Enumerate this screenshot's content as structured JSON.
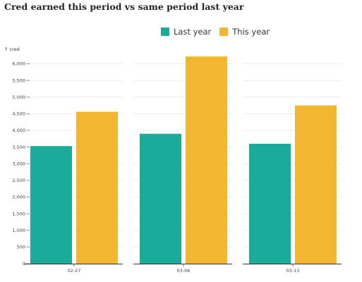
{
  "chart_data": {
    "type": "bar",
    "title": "Cred earned this period vs same period last year",
    "ylabel": "↑ cred",
    "xlabel": "",
    "categories": [
      "02-27",
      "03-06",
      "03-13"
    ],
    "series": [
      {
        "name": "Last year",
        "color": "#1aab9b",
        "values": [
          3530,
          3900,
          3600
        ]
      },
      {
        "name": "This year",
        "color": "#f2b631",
        "values": [
          4560,
          6220,
          4750
        ]
      }
    ],
    "ylim": [
      0,
      6200
    ],
    "yticks": [
      0,
      500,
      1000,
      1500,
      2000,
      2500,
      3000,
      3500,
      4000,
      4500,
      5000,
      5500,
      6000
    ],
    "ytick_labels": [
      "0",
      "500",
      "1,000",
      "1,500",
      "2,000",
      "2,500",
      "3,000",
      "3,500",
      "4,000",
      "4,500",
      "5,000",
      "5,500",
      "6,000"
    ],
    "grid": true,
    "legend_position": "top"
  }
}
